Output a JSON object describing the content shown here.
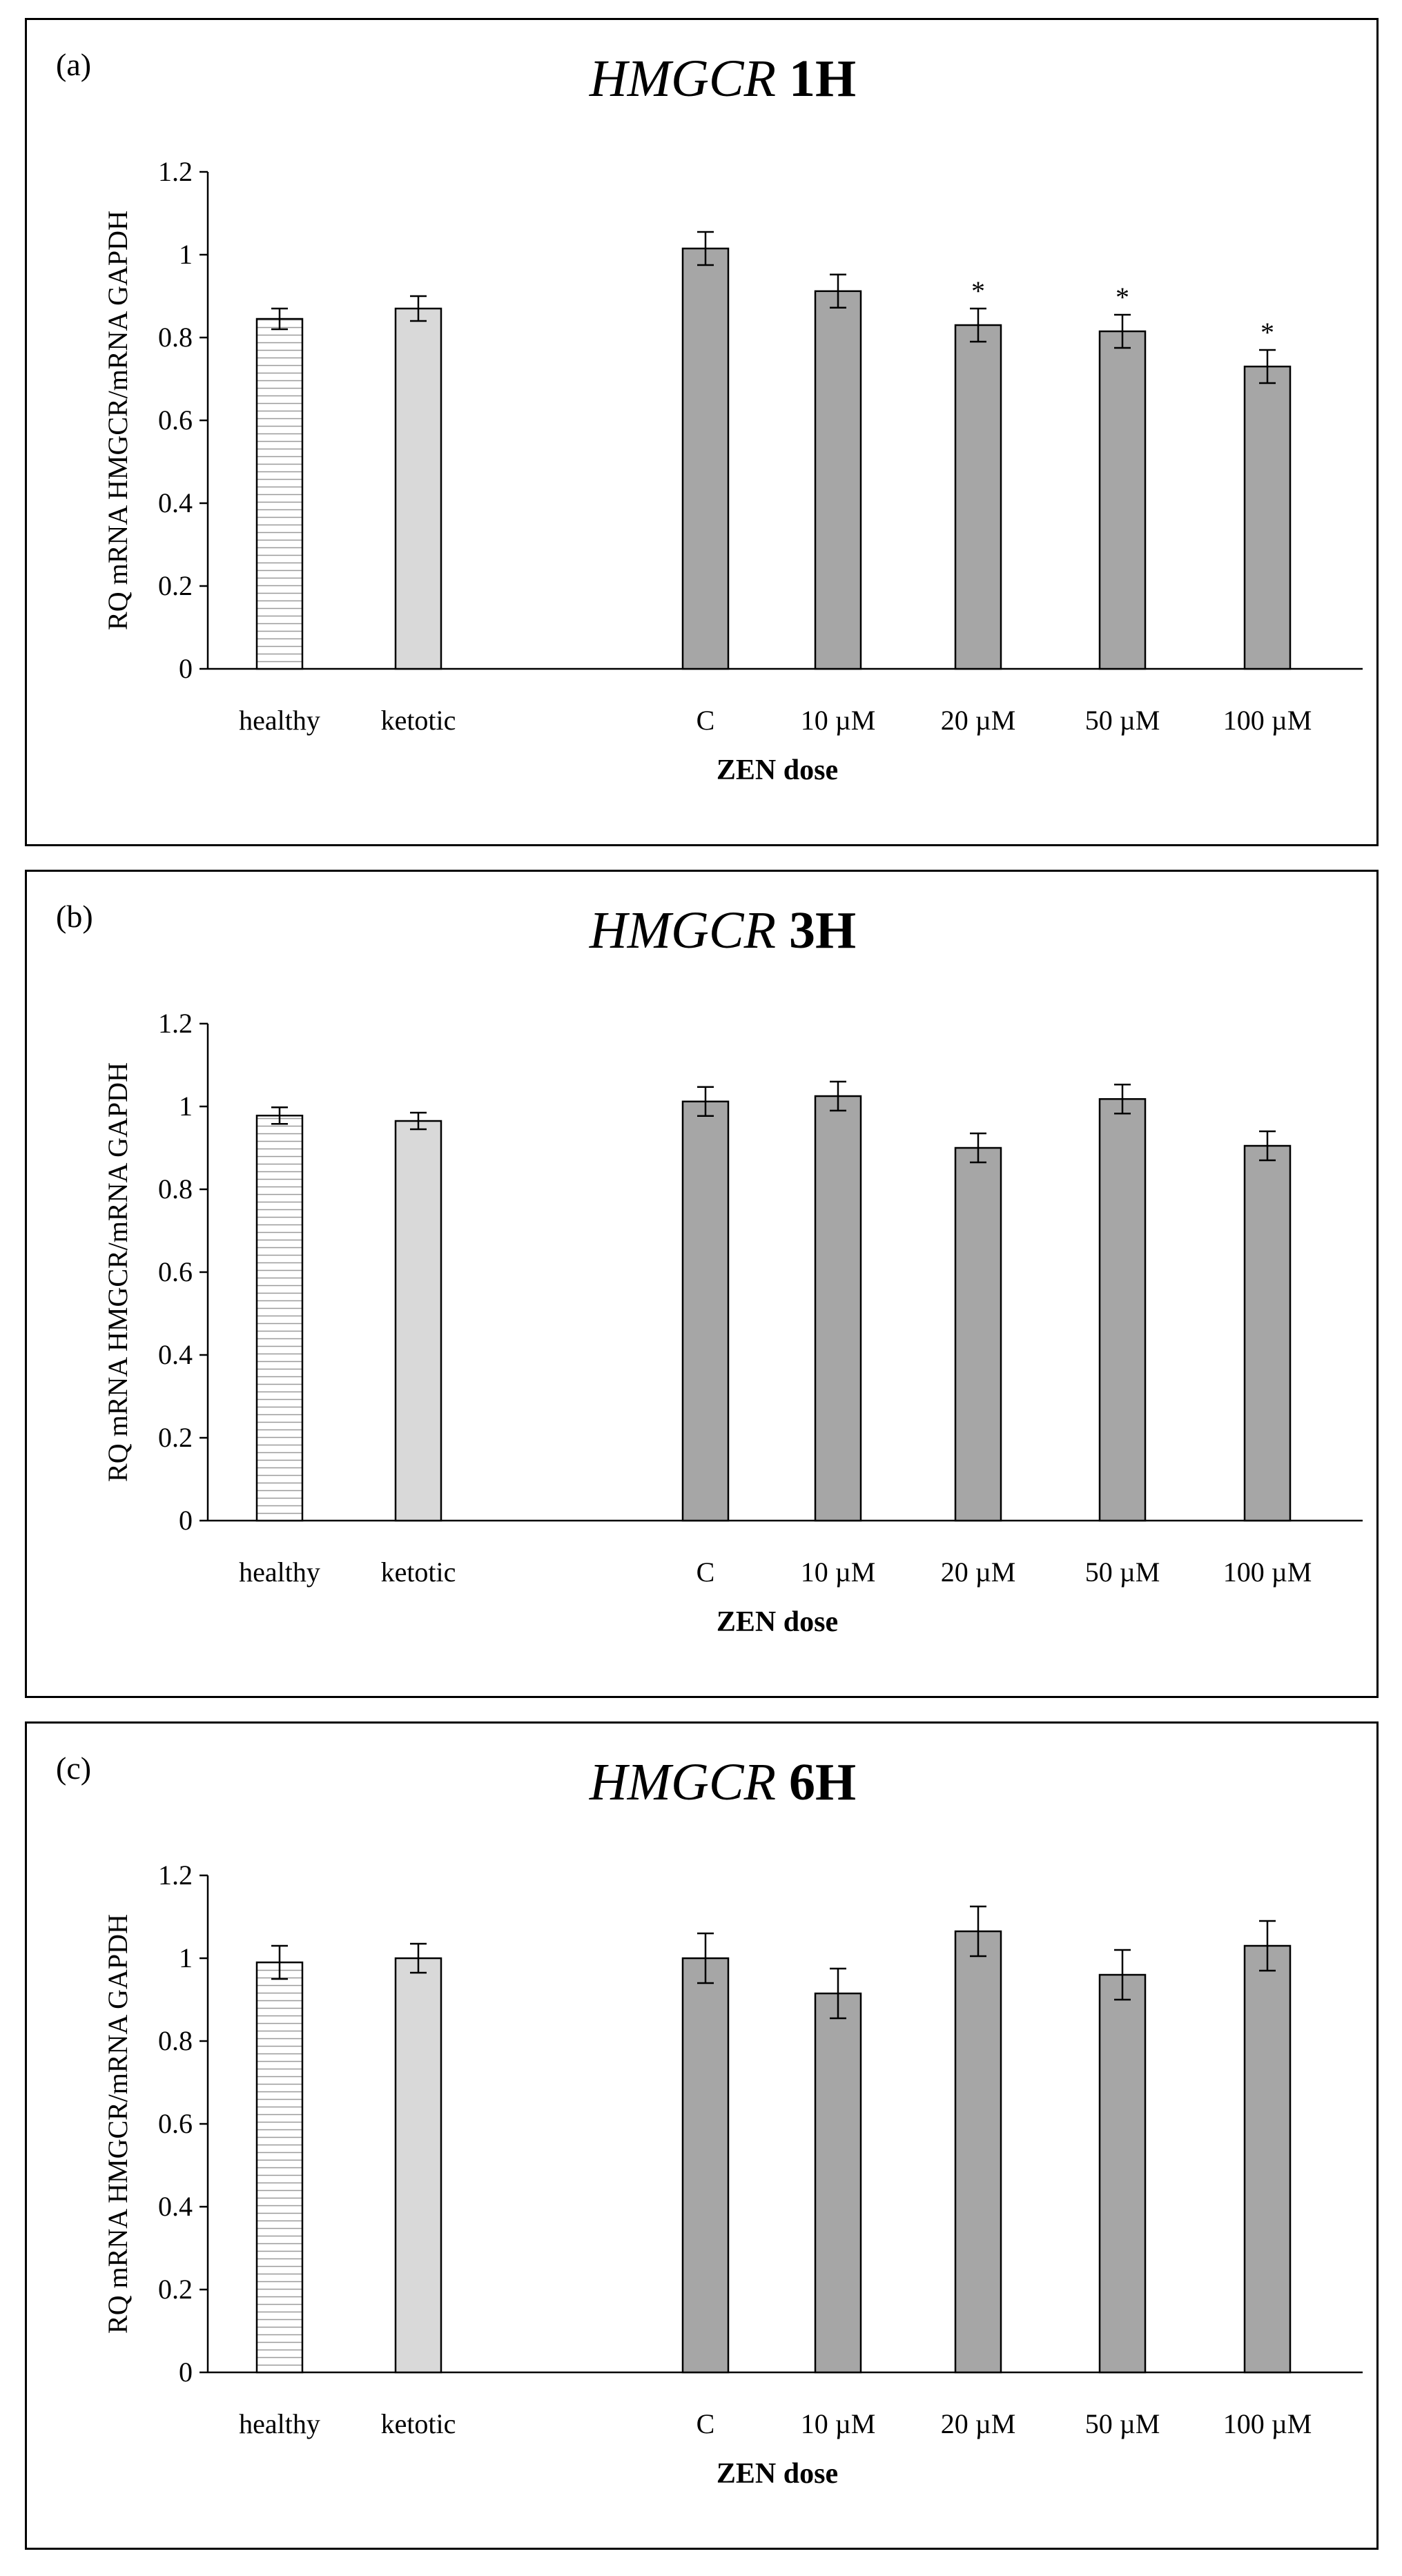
{
  "chart_data": [
    {
      "type": "bar",
      "panel_label": "(a)",
      "title_gene": "HMGCR",
      "title_time": "1H",
      "xlabel": "ZEN dose",
      "ylabel": "RQ mRNA HMGCR/mRNA GAPDH",
      "ylim": [
        0,
        1.2
      ],
      "yticks": [
        "0",
        "0.2",
        "0.4",
        "0.6",
        "0.8",
        "1",
        "1.2"
      ],
      "categories": [
        "healthy",
        "ketotic",
        "C",
        "10 µM",
        "20 µM",
        "50 µM",
        "100 µM"
      ],
      "values": [
        0.845,
        0.87,
        1.015,
        0.912,
        0.83,
        0.815,
        0.73
      ],
      "errors": [
        0.025,
        0.03,
        0.04,
        0.04,
        0.04,
        0.04,
        0.04
      ],
      "significance": [
        "",
        "",
        "",
        "",
        "*",
        "*",
        "*"
      ]
    },
    {
      "type": "bar",
      "panel_label": "(b)",
      "title_gene": "HMGCR",
      "title_time": "3H",
      "xlabel": "ZEN dose",
      "ylabel": "RQ mRNA HMGCR/mRNA GAPDH",
      "ylim": [
        0,
        1.2
      ],
      "yticks": [
        "0",
        "0.2",
        "0.4",
        "0.6",
        "0.8",
        "1",
        "1.2"
      ],
      "categories": [
        "healthy",
        "ketotic",
        "C",
        "10 µM",
        "20 µM",
        "50 µM",
        "100 µM"
      ],
      "values": [
        0.978,
        0.965,
        1.012,
        1.025,
        0.9,
        1.018,
        0.905
      ],
      "errors": [
        0.02,
        0.02,
        0.035,
        0.035,
        0.035,
        0.035,
        0.035
      ],
      "significance": [
        "",
        "",
        "",
        "",
        "",
        "",
        ""
      ]
    },
    {
      "type": "bar",
      "panel_label": "(c)",
      "title_gene": "HMGCR",
      "title_time": "6H",
      "xlabel": "ZEN dose",
      "ylabel": "RQ mRNA HMGCR/mRNA GAPDH",
      "ylim": [
        0,
        1.2
      ],
      "yticks": [
        "0",
        "0.2",
        "0.4",
        "0.6",
        "0.8",
        "1",
        "1.2"
      ],
      "categories": [
        "healthy",
        "ketotic",
        "C",
        "10 µM",
        "20 µM",
        "50 µM",
        "100 µM"
      ],
      "values": [
        0.99,
        1.0,
        1.0,
        0.915,
        1.065,
        0.96,
        1.03
      ],
      "errors": [
        0.04,
        0.035,
        0.06,
        0.06,
        0.06,
        0.06,
        0.06
      ],
      "significance": [
        "",
        "",
        "",
        "",
        "",
        "",
        ""
      ]
    }
  ]
}
